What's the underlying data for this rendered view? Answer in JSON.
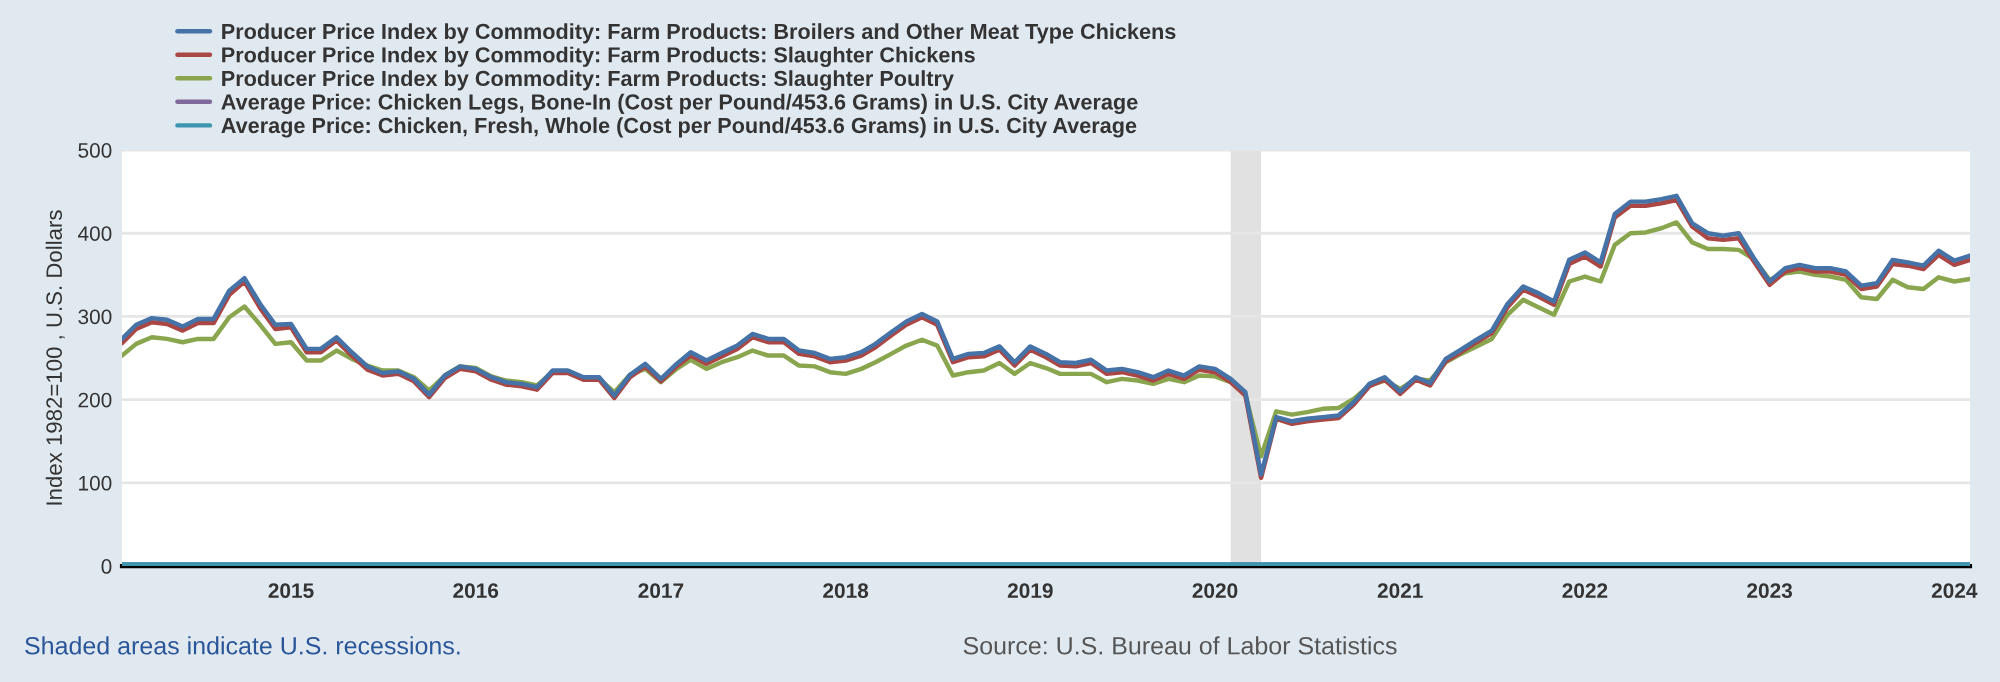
{
  "chart_data": {
    "type": "line",
    "ylabel": "Index 1982=100 , U.S. Dollars",
    "x": [
      "2014-02",
      "2014-03",
      "2014-04",
      "2014-05",
      "2014-06",
      "2014-07",
      "2014-08",
      "2014-09",
      "2014-10",
      "2014-11",
      "2014-12",
      "2015-01",
      "2015-02",
      "2015-03",
      "2015-04",
      "2015-05",
      "2015-06",
      "2015-07",
      "2015-08",
      "2015-09",
      "2015-10",
      "2015-11",
      "2015-12",
      "2016-01",
      "2016-02",
      "2016-03",
      "2016-04",
      "2016-05",
      "2016-06",
      "2016-07",
      "2016-08",
      "2016-09",
      "2016-10",
      "2016-11",
      "2016-12",
      "2017-01",
      "2017-02",
      "2017-03",
      "2017-04",
      "2017-05",
      "2017-06",
      "2017-07",
      "2017-08",
      "2017-09",
      "2017-10",
      "2017-11",
      "2017-12",
      "2018-01",
      "2018-02",
      "2018-03",
      "2018-04",
      "2018-05",
      "2018-06",
      "2018-07",
      "2018-08",
      "2018-09",
      "2018-10",
      "2018-11",
      "2018-12",
      "2019-01",
      "2019-02",
      "2019-03",
      "2019-04",
      "2019-05",
      "2019-06",
      "2019-07",
      "2019-08",
      "2019-09",
      "2019-10",
      "2019-11",
      "2019-12",
      "2020-01",
      "2020-02",
      "2020-03",
      "2020-04",
      "2020-05",
      "2020-06",
      "2020-07",
      "2020-08",
      "2020-09",
      "2020-10",
      "2020-11",
      "2020-12",
      "2021-01",
      "2021-02",
      "2021-03",
      "2021-04",
      "2021-05",
      "2021-06",
      "2021-07",
      "2021-08",
      "2021-09",
      "2021-10",
      "2021-11",
      "2021-12",
      "2022-01",
      "2022-02",
      "2022-03",
      "2022-04",
      "2022-05",
      "2022-06",
      "2022-07",
      "2022-08",
      "2022-09",
      "2022-10",
      "2022-11",
      "2022-12",
      "2023-01",
      "2023-02",
      "2023-03",
      "2023-04",
      "2023-05",
      "2023-06",
      "2023-07",
      "2023-08",
      "2023-09",
      "2023-10",
      "2023-11",
      "2023-12",
      "2024-01",
      "2024-02"
    ],
    "series": [
      {
        "name": "Producer Price Index by Commodity: Farm Products: Broilers and Other Meat Type Chickens",
        "color": "#4572a7",
        "values": [
          273,
          290,
          298,
          296,
          288,
          297,
          297,
          331,
          346,
          315,
          290,
          291,
          261,
          261,
          275,
          257,
          240,
          232,
          234,
          225,
          206,
          229,
          240,
          237,
          227,
          221,
          219,
          215,
          235,
          235,
          227,
          227,
          205,
          230,
          243,
          225,
          243,
          257,
          247,
          256,
          265,
          279,
          273,
          273,
          259,
          256,
          249,
          251,
          257,
          267,
          281,
          294,
          303,
          294,
          249,
          255,
          256,
          264,
          245,
          264,
          255,
          245,
          244,
          248,
          235,
          237,
          233,
          227,
          235,
          229,
          240,
          237,
          225,
          209,
          110,
          179,
          174,
          177,
          179,
          181,
          197,
          219,
          227,
          210,
          227,
          220,
          249,
          260,
          272,
          283,
          315,
          336,
          328,
          318,
          368,
          377,
          365,
          423,
          438,
          438,
          441,
          445,
          412,
          400,
          397,
          400,
          370,
          342,
          358,
          362,
          358,
          358,
          354,
          337,
          340,
          368,
          365,
          361,
          379,
          367,
          373
        ]
      },
      {
        "name": "Producer Price Index by Commodity: Farm Products: Slaughter Chickens",
        "color": "#aa4643",
        "values": [
          268,
          285,
          293,
          291,
          283,
          292,
          292,
          326,
          342,
          310,
          285,
          287,
          257,
          257,
          271,
          253,
          236,
          229,
          231,
          222,
          203,
          226,
          237,
          234,
          224,
          218,
          216,
          212,
          232,
          232,
          224,
          224,
          202,
          227,
          240,
          222,
          240,
          253,
          243,
          252,
          261,
          275,
          269,
          269,
          255,
          252,
          245,
          247,
          253,
          263,
          277,
          290,
          299,
          290,
          245,
          251,
          252,
          260,
          241,
          260,
          251,
          241,
          240,
          244,
          231,
          233,
          229,
          223,
          231,
          225,
          236,
          233,
          221,
          205,
          106,
          177,
          171,
          174,
          176,
          178,
          194,
          216,
          224,
          207,
          224,
          217,
          246,
          257,
          269,
          280,
          311,
          332,
          324,
          314,
          363,
          372,
          360,
          419,
          433,
          433,
          436,
          440,
          408,
          394,
          392,
          394,
          366,
          338,
          354,
          358,
          354,
          354,
          350,
          333,
          336,
          363,
          361,
          357,
          374,
          362,
          368
        ]
      },
      {
        "name": "Producer Price Index by Commodity: Farm Products: Slaughter Poultry",
        "color": "#89a54e",
        "values": [
          253,
          267,
          275,
          273,
          269,
          273,
          273,
          299,
          312,
          290,
          267,
          269,
          247,
          247,
          259,
          249,
          241,
          235,
          235,
          227,
          211,
          229,
          240,
          238,
          228,
          223,
          221,
          217,
          233,
          233,
          225,
          225,
          209,
          230,
          237,
          221,
          237,
          248,
          237,
          245,
          251,
          259,
          253,
          253,
          241,
          240,
          233,
          231,
          237,
          245,
          255,
          265,
          272,
          265,
          229,
          233,
          235,
          244,
          231,
          244,
          238,
          231,
          231,
          231,
          221,
          225,
          223,
          219,
          225,
          221,
          229,
          228,
          221,
          206,
          132,
          186,
          182,
          185,
          189,
          190,
          201,
          217,
          223,
          213,
          225,
          223,
          245,
          255,
          264,
          273,
          302,
          320,
          311,
          302,
          342,
          348,
          342,
          386,
          400,
          401,
          406,
          413,
          389,
          381,
          381,
          380,
          369,
          344,
          352,
          354,
          350,
          348,
          344,
          323,
          321,
          344,
          335,
          333,
          347,
          342,
          345
        ]
      },
      {
        "name": "Average Price: Chicken Legs, Bone-In (Cost per Pound/453.6 Grams) in U.S. City Average",
        "color": "#80699b",
        "x": [
          "2014-02",
          "2024-02"
        ],
        "values": [
          2,
          2
        ]
      },
      {
        "name": "Average Price: Chicken, Fresh, Whole (Cost per Pound/453.6 Grams) in U.S. City Average",
        "color": "#3d96ae",
        "x": [
          "2014-02",
          "2024-02"
        ],
        "values": [
          2,
          2
        ]
      }
    ],
    "xlim": [
      "2014-02",
      "2024-02"
    ],
    "xticks": [
      "2015",
      "2016",
      "2017",
      "2018",
      "2019",
      "2020",
      "2021",
      "2022",
      "2023",
      "2024"
    ],
    "ylim": [
      0,
      500
    ],
    "yticks": [
      0,
      100,
      200,
      300,
      400,
      500
    ],
    "grid": "y",
    "legend": "top left",
    "line_style": "solid",
    "marker": "none",
    "bands": [
      {
        "axis": "x",
        "from": "2020-02",
        "to": "2020-04",
        "color": "#e1e1e1"
      }
    ],
    "annotations": [
      "Shaded areas indicate U.S. recessions.",
      "Source: U.S. Bureau of Labor Statistics"
    ]
  }
}
